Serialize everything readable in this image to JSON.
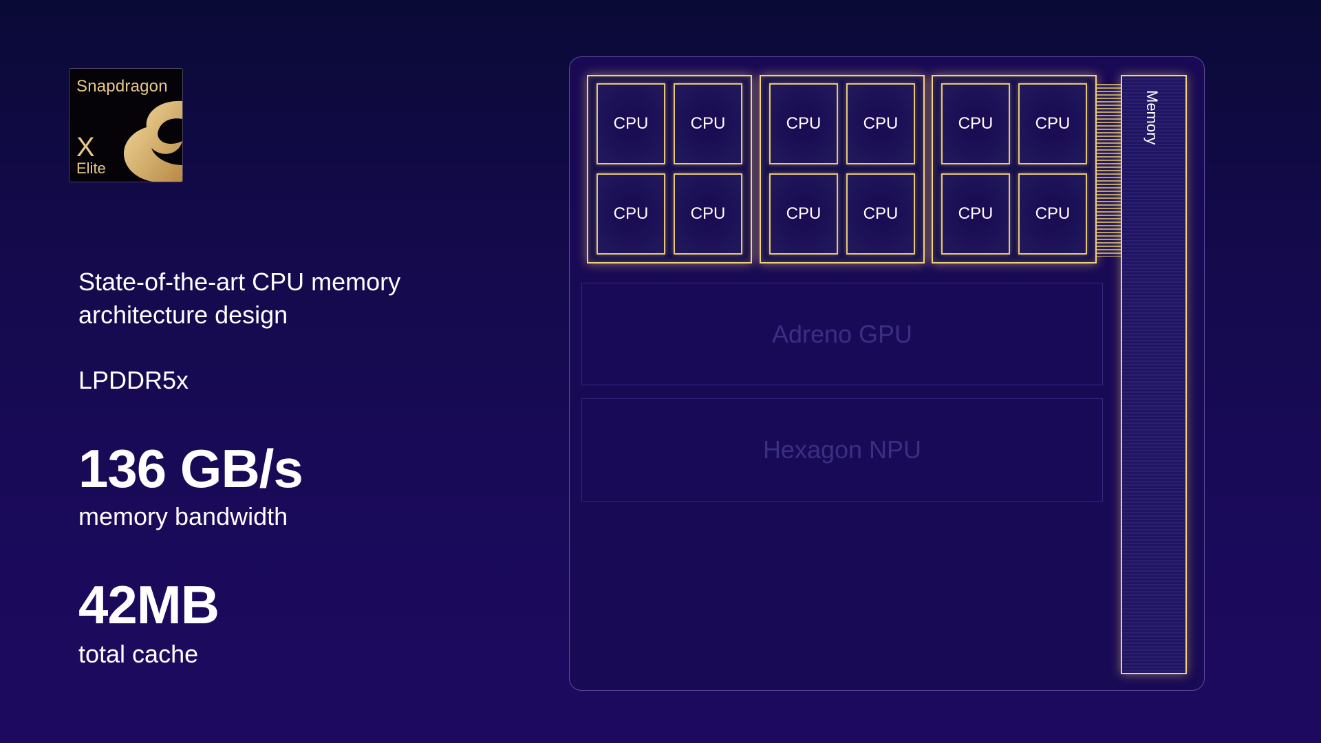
{
  "logo": {
    "brand": "Snapdragon",
    "model": "X",
    "tier": "Elite"
  },
  "specs": {
    "heading": "State-of-the-art CPU memory architecture design",
    "memory_type": "LPDDR5x",
    "bandwidth_value": "136 GB/s",
    "bandwidth_label": "memory bandwidth",
    "cache_value": "42MB",
    "cache_label": "total cache"
  },
  "diagram": {
    "clusters": [
      {
        "cores": [
          "CPU",
          "CPU",
          "CPU",
          "CPU"
        ]
      },
      {
        "cores": [
          "CPU",
          "CPU",
          "CPU",
          "CPU"
        ]
      },
      {
        "cores": [
          "CPU",
          "CPU",
          "CPU",
          "CPU"
        ]
      }
    ],
    "memory_label": "Memory",
    "gpu_label": "Adreno GPU",
    "npu_label": "Hexagon NPU",
    "highlight_color": "#f2d27a"
  }
}
